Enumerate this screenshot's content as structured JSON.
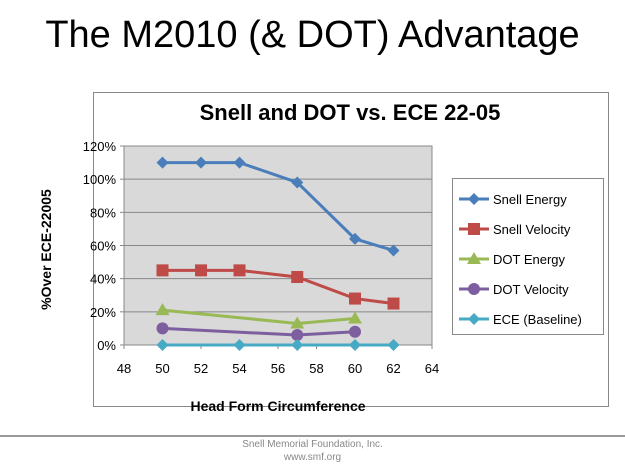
{
  "slide_title": "The M2010 (& DOT) Advantage",
  "footer": {
    "line1": "Snell Memorial Foundation, Inc.",
    "line2": "www.smf.org"
  },
  "chart_data": {
    "type": "line",
    "title": "Snell and DOT vs. ECE 22-05",
    "xlabel": "Head Form Circumference",
    "ylabel": "%Over ECE-22005",
    "xlim": [
      48,
      64
    ],
    "ylim": [
      0,
      120
    ],
    "xticks": [
      "48",
      "50",
      "52",
      "54",
      "56",
      "58",
      "60",
      "62",
      "64"
    ],
    "yticks": [
      "0%",
      "20%",
      "40%",
      "60%",
      "80%",
      "100%",
      "120%"
    ],
    "grid": true,
    "legend": "right",
    "series": [
      {
        "name": "Snell Energy",
        "color": "#4a7ebb",
        "marker": "diamond",
        "x": [
          50,
          52,
          54,
          57,
          60,
          62
        ],
        "y": [
          110,
          110,
          110,
          98,
          64,
          57
        ]
      },
      {
        "name": "Snell Velocity",
        "color": "#be4b48",
        "marker": "square",
        "x": [
          50,
          52,
          54,
          57,
          60,
          62
        ],
        "y": [
          45,
          45,
          45,
          41,
          28,
          25
        ]
      },
      {
        "name": "DOT Energy",
        "color": "#98b954",
        "marker": "triangle",
        "x": [
          50,
          57,
          60
        ],
        "y": [
          21,
          13,
          16
        ]
      },
      {
        "name": "DOT Velocity",
        "color": "#7d5fa0",
        "marker": "circle",
        "x": [
          50,
          57,
          60
        ],
        "y": [
          10,
          6,
          8
        ]
      },
      {
        "name": "ECE (Baseline)",
        "color": "#46aac5",
        "marker": "diamond",
        "x": [
          50,
          54,
          57,
          60,
          62
        ],
        "y": [
          0,
          0,
          0,
          0,
          0
        ]
      }
    ]
  }
}
